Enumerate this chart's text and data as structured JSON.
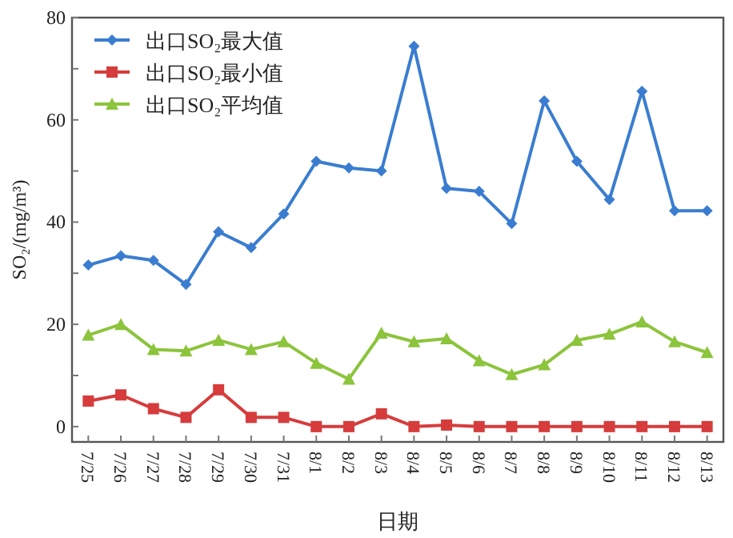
{
  "chart_data": {
    "type": "line",
    "xlabel": "日期",
    "ylabel": "SO₂/(mg/m³)",
    "categories": [
      "7/25",
      "7/26",
      "7/27",
      "7/28",
      "7/29",
      "7/30",
      "7/31",
      "8/1",
      "8/2",
      "8/3",
      "8/4",
      "8/5",
      "8/6",
      "8/7",
      "8/8",
      "8/9",
      "8/10",
      "8/11",
      "8/12",
      "8/13"
    ],
    "series": [
      {
        "name": "出口SO₂最大值",
        "color": "#3a7dd0",
        "marker": "diamond",
        "values": [
          31.6,
          33.4,
          32.5,
          27.8,
          38.1,
          35,
          41.6,
          51.9,
          50.6,
          50,
          74.4,
          46.6,
          46,
          39.7,
          63.7,
          51.9,
          44.4,
          65.6,
          42.2,
          42.2
        ]
      },
      {
        "name": "出口SO₂最小值",
        "color": "#d63c3c",
        "marker": "square",
        "values": [
          5,
          6.2,
          3.5,
          1.8,
          7.2,
          1.8,
          1.8,
          0,
          0,
          2.5,
          0,
          0.3,
          0,
          0,
          0,
          0,
          0,
          0,
          0,
          0
        ]
      },
      {
        "name": "出口SO₂平均值",
        "color": "#8cc43c",
        "marker": "triangle",
        "values": [
          17.9,
          20,
          15.1,
          14.8,
          16.9,
          15.1,
          16.6,
          12.4,
          9.3,
          18.3,
          16.6,
          17.2,
          12.9,
          10.2,
          12.1,
          16.9,
          18.1,
          20.5,
          16.6,
          14.5
        ]
      }
    ],
    "ylim": [
      -3,
      80
    ],
    "yticks": [
      0,
      {
        "value": 10,
        "label": null
      },
      20,
      {
        "value": 30,
        "label": null
      },
      40,
      {
        "value": 50,
        "label": null
      },
      60,
      {
        "value": 70,
        "label": null
      },
      80
    ],
    "grid": false,
    "legend": "top left",
    "line_style": "solid"
  }
}
